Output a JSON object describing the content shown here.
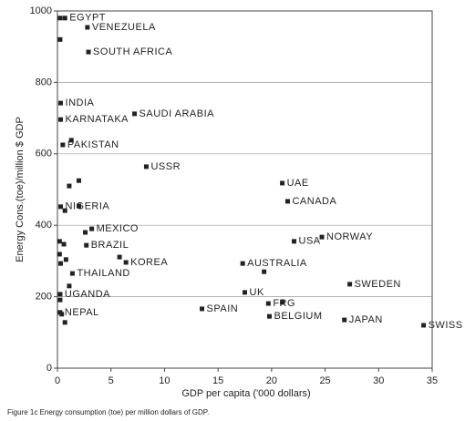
{
  "chart_data": {
    "type": "scatter",
    "x_label": "GDP per capita ('000 dollars)",
    "y_label": "Energy Cons.(toe)/million $ GDP",
    "caption": "Figure 1c  Energy consumption (toe) per million dollars of GDP.",
    "x": [
      0.7,
      0.25,
      2.8,
      0.25,
      2.9,
      0.3,
      0.3,
      7.2,
      0.5,
      1.3,
      8.3,
      2.0,
      1.1,
      21.0,
      21.5,
      0.3,
      0.7,
      2.0,
      3.2,
      2.6,
      2.7,
      0.2,
      0.6,
      0.2,
      0.3,
      0.8,
      6.4,
      5.8,
      1.4,
      1.1,
      22.1,
      24.7,
      17.3,
      19.3,
      27.3,
      17.5,
      0.25,
      0.25,
      19.7,
      21.0,
      13.5,
      0.25,
      0.4,
      0.7,
      19.8,
      26.8,
      34.2
    ],
    "values": [
      980,
      980,
      954,
      920,
      885,
      742,
      696,
      712,
      625,
      638,
      564,
      525,
      510,
      518,
      467,
      452,
      441,
      454,
      390,
      380,
      344,
      355,
      347,
      319,
      293,
      304,
      296,
      311,
      265,
      230,
      355,
      367,
      293,
      270,
      235,
      212,
      207,
      191,
      181,
      184,
      166,
      156,
      151,
      128,
      145,
      135,
      120
    ],
    "labels": [
      "EGYPT",
      null,
      "VENEZUELA",
      null,
      "SOUTH AFRICA",
      "INDIA",
      "KARNATAKA",
      "SAUDI ARABIA",
      "PAKISTAN",
      null,
      "USSR",
      null,
      null,
      "UAE",
      "CANADA",
      "NIGERIA",
      null,
      null,
      "MEXICO",
      null,
      "BRAZIL",
      null,
      null,
      null,
      null,
      null,
      "KOREA",
      null,
      "THAILAND",
      null,
      "USA",
      "NORWAY",
      "AUSTRALIA",
      null,
      "SWEDEN",
      "UK",
      "UGANDA",
      null,
      "FRG",
      null,
      "SPAIN",
      "NEPAL",
      null,
      null,
      "BELGIUM",
      "JAPAN",
      "SWISS"
    ],
    "color": "#222222",
    "xlim": [
      0,
      35
    ],
    "ylim": [
      0,
      1000
    ],
    "xticks": [
      0,
      5,
      10,
      15,
      20,
      25,
      30,
      35
    ],
    "yticks": [
      0,
      200,
      400,
      600,
      800,
      1000
    ],
    "grid": true
  }
}
